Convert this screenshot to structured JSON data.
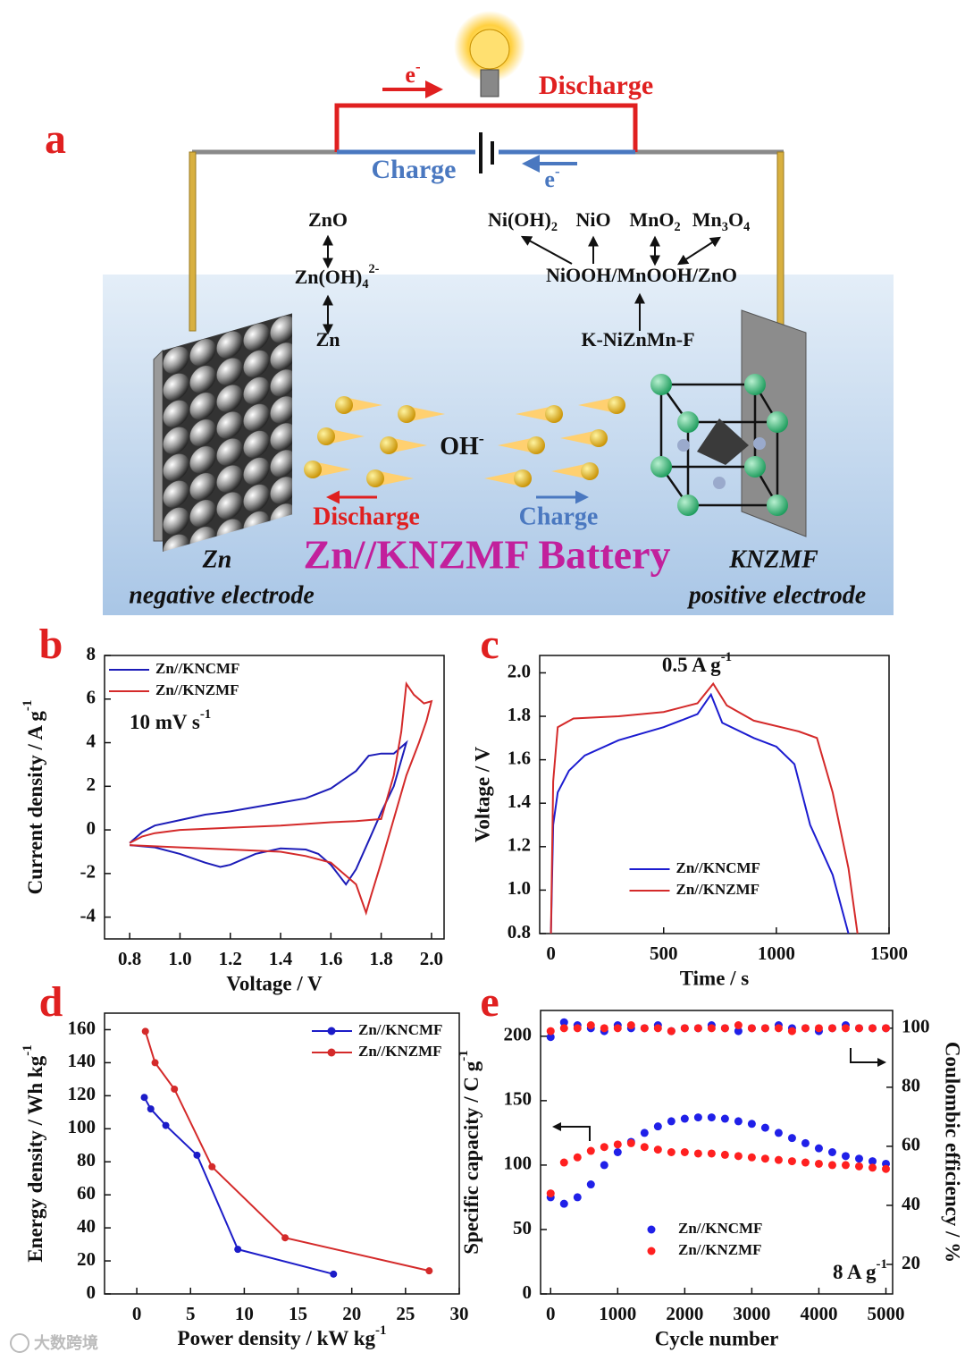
{
  "panel_a": {
    "label": "a",
    "electron_top": [
      {
        "t": "e"
      },
      {
        "t": "-",
        "s": "sup"
      }
    ],
    "discharge_top": "Discharge",
    "charge_top": "Charge",
    "electron_bottom": [
      {
        "t": "e"
      },
      {
        "t": "-",
        "s": "sup"
      }
    ],
    "negative_species": [
      [
        {
          "t": "ZnO"
        }
      ],
      [
        {
          "t": "Zn(OH)"
        },
        {
          "t": "4",
          "s": "sub"
        },
        {
          "t": "2-",
          "s": "sup"
        }
      ],
      [
        {
          "t": "Zn"
        }
      ]
    ],
    "positive_products": [
      [
        {
          "t": "Ni(OH)"
        },
        {
          "t": "2",
          "s": "sub"
        }
      ],
      [
        {
          "t": "NiO"
        }
      ],
      [
        {
          "t": "MnO"
        },
        {
          "t": "2",
          "s": "sub"
        }
      ],
      [
        {
          "t": "Mn"
        },
        {
          "t": "3",
          "s": "sub"
        },
        {
          "t": "O"
        },
        {
          "t": "4",
          "s": "sub"
        }
      ]
    ],
    "intermediate": "NiOOH/MnOOH/ZnO",
    "precursor": "K-NiZnMn-F",
    "ion": [
      {
        "t": "OH"
      },
      {
        "t": "-",
        "s": "sup"
      }
    ],
    "discharge_ion": "Discharge",
    "charge_ion": "Charge",
    "battery_name": "Zn//KNZMF Battery",
    "negative_name": "Zn",
    "negative_role": "negative electrode",
    "positive_name": "KNZMF",
    "positive_role": "positive electrode"
  },
  "watermark": "大数跨境",
  "chart_data": [
    {
      "type": "line",
      "label": "b",
      "xlabel": "Voltage / V",
      "ylabel": [
        {
          "t": "Current density / A g"
        },
        {
          "t": "-1",
          "s": "sup"
        }
      ],
      "annotation": [
        {
          "t": "10 mV s"
        },
        {
          "t": "-1",
          "s": "sup"
        }
      ],
      "xlim": [
        0.7,
        2.05
      ],
      "ylim": [
        -5,
        8
      ],
      "xticks": [
        0.8,
        {
          "value": 1,
          "label": "1.0"
        },
        1.2,
        1.4,
        1.6,
        1.8,
        {
          "value": 2,
          "label": "2.0"
        }
      ],
      "yticks": [
        -4,
        -2,
        0,
        2,
        4,
        6,
        8
      ],
      "legend": "upper left",
      "series": [
        {
          "name": "Zn//KNCMF",
          "color": "#1c1cb8",
          "x": [
            0.8,
            0.85,
            0.9,
            1.0,
            1.1,
            1.2,
            1.3,
            1.4,
            1.5,
            1.6,
            1.7,
            1.75,
            1.8,
            1.85,
            1.9,
            1.85,
            1.8,
            1.75,
            1.7,
            1.66,
            1.6,
            1.55,
            1.5,
            1.4,
            1.3,
            1.2,
            1.16,
            1.1,
            1.0,
            0.9,
            0.8
          ],
          "values": [
            -0.6,
            -0.1,
            0.2,
            0.45,
            0.7,
            0.85,
            1.05,
            1.25,
            1.45,
            1.9,
            2.7,
            3.4,
            3.5,
            3.5,
            4.0,
            2.0,
            0.8,
            -0.5,
            -1.8,
            -2.5,
            -1.6,
            -1.1,
            -0.9,
            -0.85,
            -1.1,
            -1.6,
            -1.7,
            -1.5,
            -1.1,
            -0.8,
            -0.7
          ]
        },
        {
          "name": "Zn//KNZMF",
          "color": "#d42a2a",
          "x": [
            0.8,
            0.85,
            0.9,
            1.0,
            1.2,
            1.4,
            1.6,
            1.7,
            1.8,
            1.85,
            1.88,
            1.9,
            1.93,
            1.97,
            2.0,
            1.98,
            1.95,
            1.9,
            1.85,
            1.8,
            1.76,
            1.74,
            1.7,
            1.6,
            1.5,
            1.4,
            1.2,
            1.0,
            0.8
          ],
          "values": [
            -0.6,
            -0.3,
            -0.15,
            0,
            0.1,
            0.2,
            0.35,
            0.4,
            0.5,
            2.5,
            4.5,
            6.7,
            6.2,
            5.8,
            5.9,
            5.0,
            4.0,
            2.5,
            0.5,
            -1.5,
            -3.0,
            -3.8,
            -2.5,
            -1.5,
            -1.2,
            -1.0,
            -0.9,
            -0.8,
            -0.7
          ]
        }
      ]
    },
    {
      "type": "line",
      "label": "c",
      "xlabel": "Time / s",
      "ylabel": "Voltage / V",
      "annotation": [
        {
          "t": "0.5 A g"
        },
        {
          "t": "-1",
          "s": "sup"
        }
      ],
      "xlim": [
        -50,
        1500
      ],
      "ylim": [
        0.8,
        2.08
      ],
      "xticks": [
        0,
        500,
        1000,
        1500
      ],
      "yticks": [
        0.8,
        {
          "value": 1,
          "label": "1.0"
        },
        1.2,
        1.4,
        1.6,
        1.8,
        {
          "value": 2,
          "label": "2.0"
        }
      ],
      "legend": "lower center",
      "series": [
        {
          "name": "Zn//KNCMF",
          "color": "#1c1cd0",
          "x": [
            0,
            10,
            30,
            80,
            150,
            300,
            500,
            650,
            710,
            760,
            900,
            1000,
            1080,
            1150,
            1250,
            1320
          ],
          "values": [
            0.8,
            1.3,
            1.45,
            1.55,
            1.62,
            1.69,
            1.75,
            1.81,
            1.9,
            1.77,
            1.7,
            1.66,
            1.58,
            1.3,
            1.07,
            0.8
          ]
        },
        {
          "name": "Zn//KNZMF",
          "color": "#d42a2a",
          "x": [
            0,
            10,
            30,
            100,
            300,
            500,
            650,
            720,
            780,
            900,
            1100,
            1180,
            1250,
            1320,
            1360
          ],
          "values": [
            0.8,
            1.5,
            1.75,
            1.79,
            1.8,
            1.82,
            1.86,
            1.95,
            1.85,
            1.78,
            1.73,
            1.7,
            1.45,
            1.1,
            0.8
          ]
        }
      ]
    },
    {
      "type": "line",
      "label": "d",
      "markers": true,
      "xlabel": [
        {
          "t": "Power density / kW kg"
        },
        {
          "t": "-1",
          "s": "sup"
        }
      ],
      "ylabel": [
        {
          "t": "Energy density / Wh kg"
        },
        {
          "t": "-1",
          "s": "sup"
        }
      ],
      "xlim": [
        -3,
        30
      ],
      "ylim": [
        0,
        170
      ],
      "xticks": [
        0,
        5,
        10,
        15,
        20,
        25,
        30
      ],
      "yticks": [
        0,
        20,
        40,
        60,
        80,
        100,
        120,
        140,
        160
      ],
      "legend": "upper right",
      "series": [
        {
          "name": "Zn//KNCMF",
          "color": "#1c1cc8",
          "x": [
            0.7,
            1.3,
            2.7,
            5.6,
            9.4,
            18.3
          ],
          "values": [
            119,
            112,
            102,
            84,
            27,
            12
          ]
        },
        {
          "name": "Zn//KNZMF",
          "color": "#d42a2a",
          "x": [
            0.8,
            1.7,
            3.5,
            7,
            13.8,
            27.2
          ],
          "values": [
            159,
            140,
            124,
            77,
            34,
            14
          ]
        }
      ]
    },
    {
      "type": "scatter",
      "label": "e",
      "xlabel": "Cycle number",
      "ylabel": [
        {
          "t": "Specific capacity / C g"
        },
        {
          "t": "-1",
          "s": "sup"
        }
      ],
      "y2label": "Coulombic efficiency / %",
      "annotation": [
        {
          "t": "8 A g"
        },
        {
          "t": "-1",
          "s": "sup"
        }
      ],
      "xlim": [
        -150,
        5100
      ],
      "ylim": [
        0,
        220
      ],
      "y2lim": [
        10,
        106
      ],
      "xticks": [
        0,
        1000,
        2000,
        3000,
        4000,
        5000
      ],
      "yticks": [
        0,
        50,
        100,
        150,
        200
      ],
      "y2ticks": [
        20,
        40,
        60,
        80,
        100
      ],
      "legend": "lower center",
      "x": [
        0,
        200,
        400,
        600,
        800,
        1000,
        1200,
        1400,
        1600,
        1800,
        2000,
        2200,
        2400,
        2600,
        2800,
        3000,
        3200,
        3400,
        3600,
        3800,
        4000,
        4200,
        4400,
        4600,
        4800,
        5000
      ],
      "series": [
        {
          "name": "Zn//KNCMF",
          "color": "#2020e8",
          "values": [
            75,
            70,
            75,
            85,
            100,
            110,
            118,
            125,
            130,
            134,
            136,
            137,
            137,
            136,
            134,
            132,
            129,
            125,
            121,
            117,
            113,
            110,
            107,
            105,
            103,
            101
          ]
        },
        {
          "name": "Zn//KNZMF",
          "color": "#ff2020",
          "values": [
            78,
            102,
            106,
            111,
            114,
            116,
            117,
            114,
            112,
            110,
            110,
            109,
            109,
            108,
            107,
            106,
            105,
            104,
            103,
            102,
            101,
            100,
            100,
            99,
            98,
            97
          ]
        },
        {
          "color": "#2020e8",
          "axis": "y2",
          "values": [
            97,
            102,
            101,
            100,
            99,
            101,
            100,
            100,
            101,
            99,
            100,
            100,
            101,
            100,
            99,
            100,
            100,
            101,
            100,
            100,
            99,
            100,
            101,
            100,
            100,
            100
          ]
        },
        {
          "color": "#ff2020",
          "axis": "y2",
          "values": [
            99,
            100,
            100,
            101,
            100,
            100,
            101,
            100,
            100,
            99,
            100,
            100,
            100,
            100,
            101,
            100,
            100,
            100,
            99,
            100,
            100,
            100,
            100,
            100,
            100,
            100
          ]
        }
      ]
    }
  ]
}
